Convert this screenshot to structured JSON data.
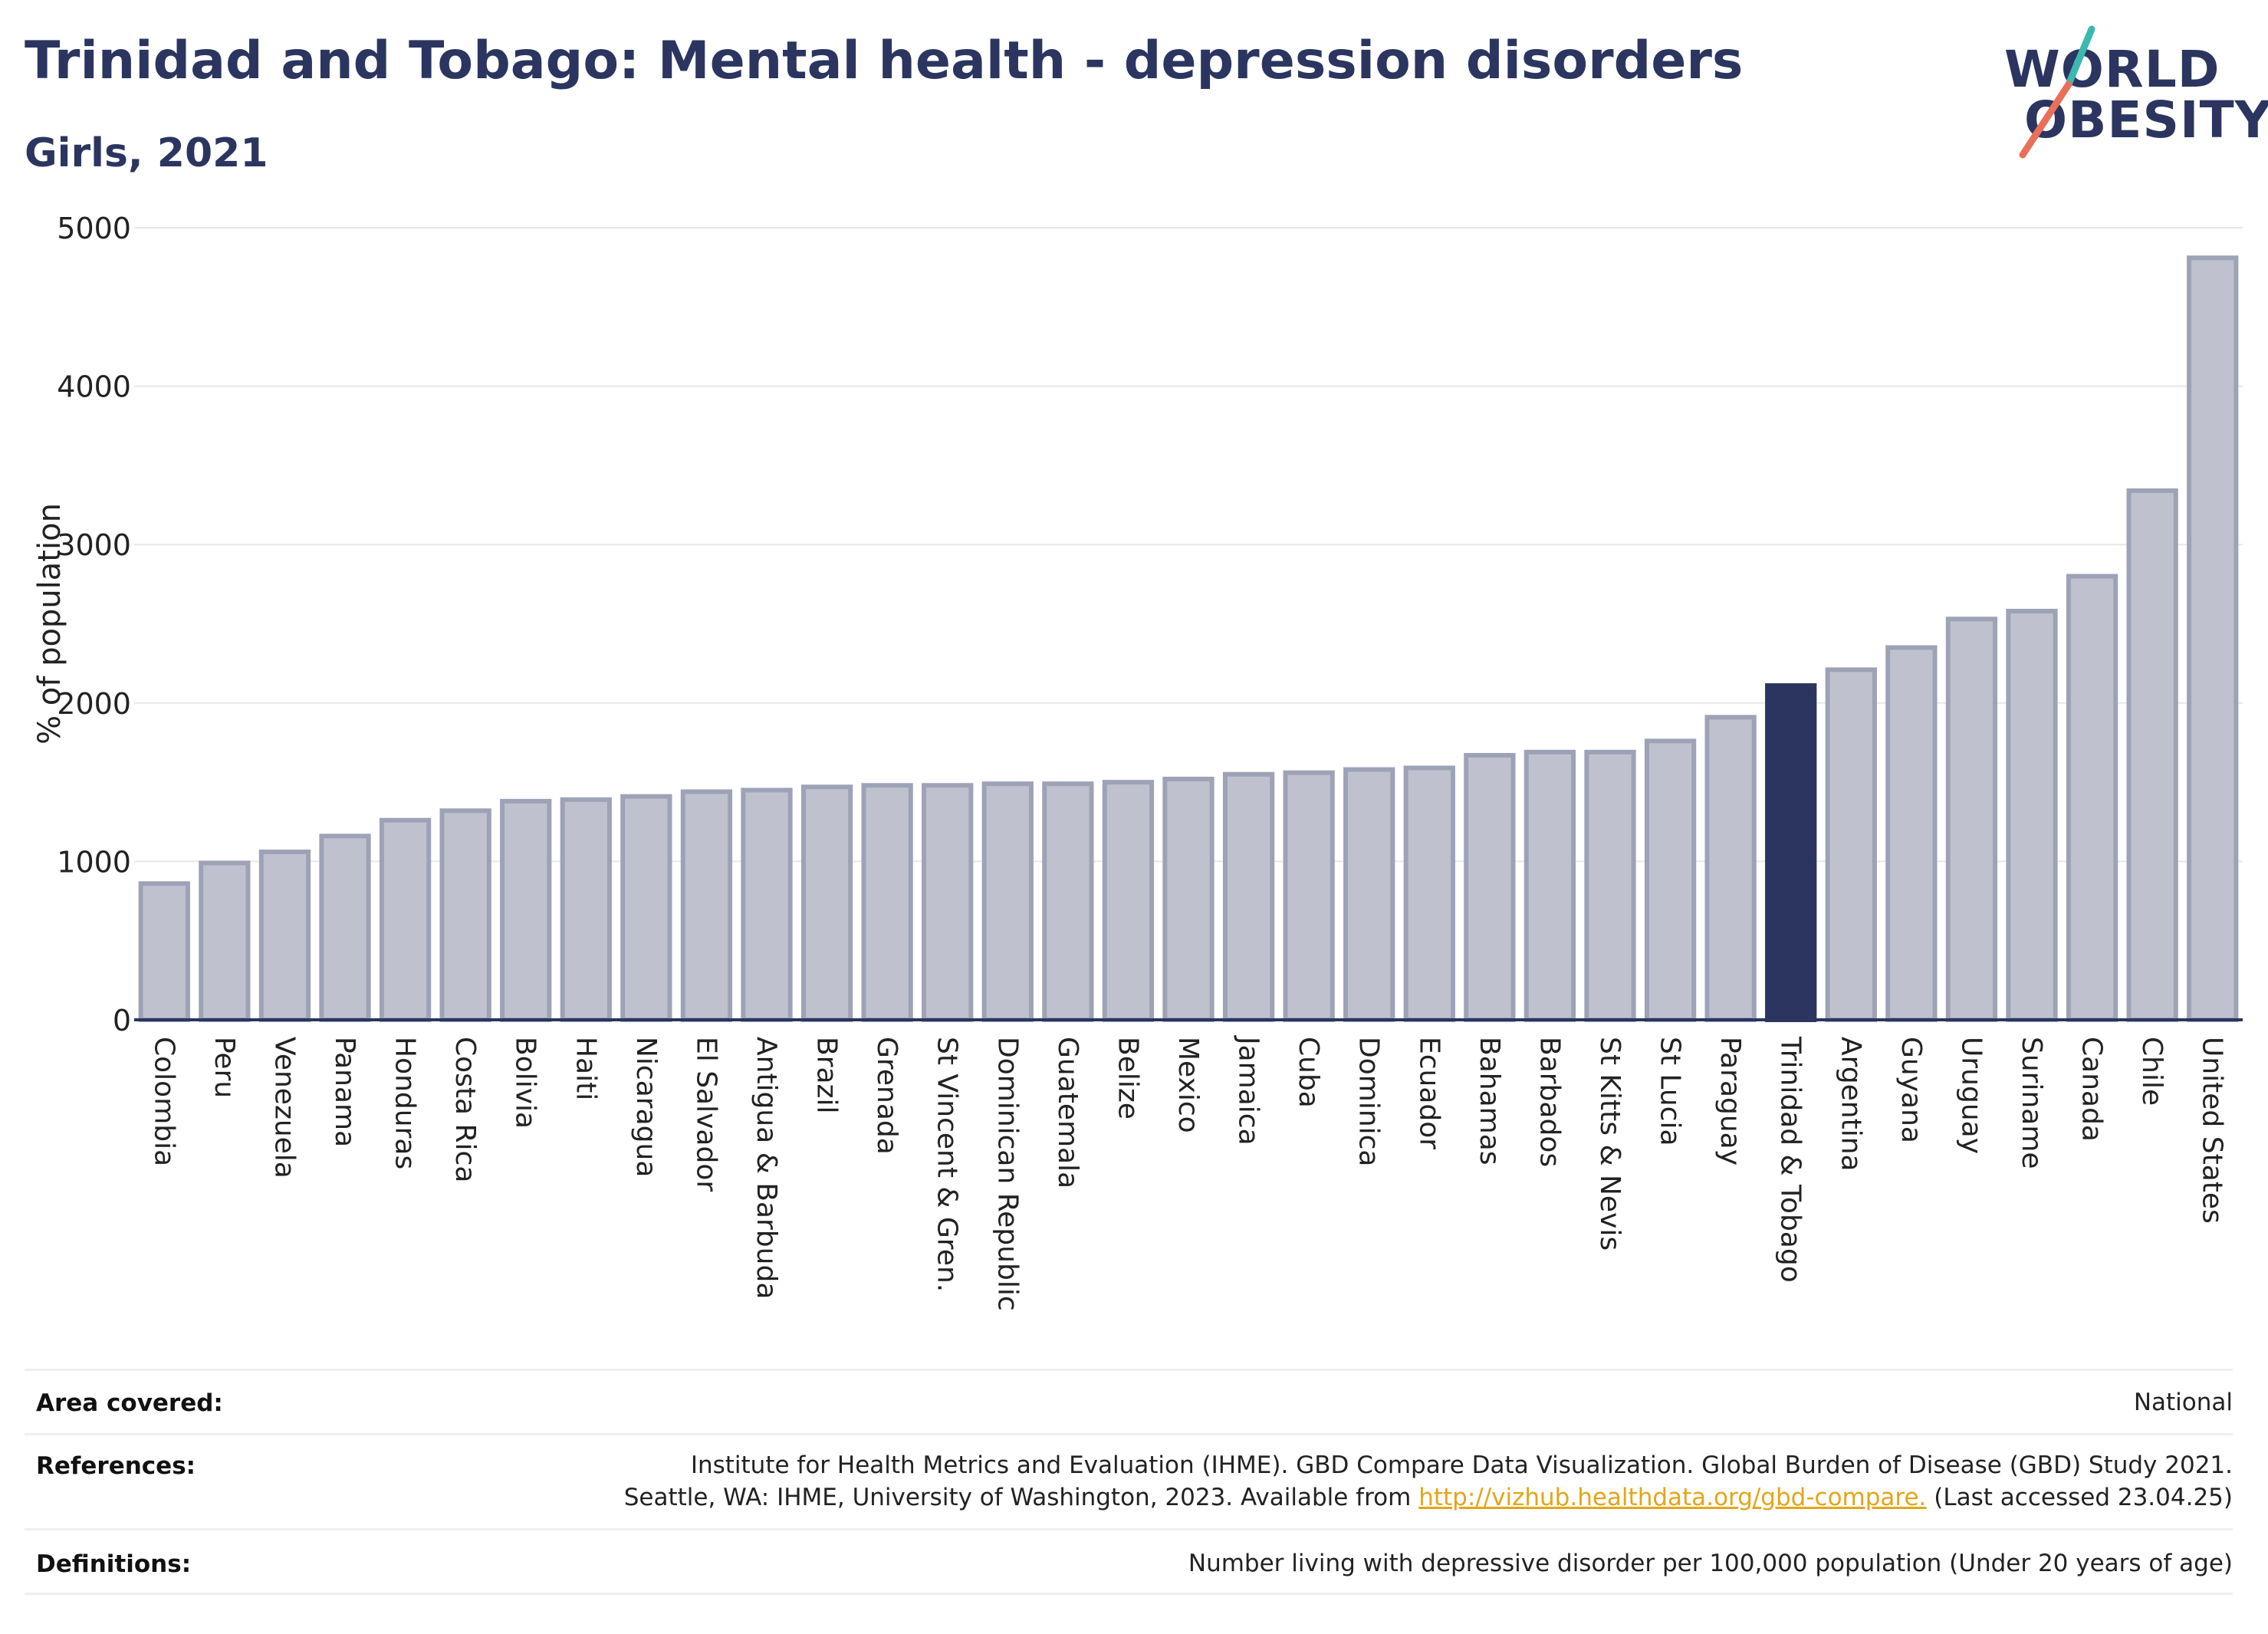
{
  "header": {
    "title": "Trinidad and Tobago: Mental health - depression disorders",
    "subtitle": "Girls, 2021"
  },
  "logo": {
    "line1": "WORLD",
    "line2": "OBESITY",
    "colors": {
      "text": "#2b3560",
      "slash_top": "#3bb8b0",
      "slash_bottom": "#e8705a"
    }
  },
  "chart_data": {
    "type": "bar",
    "title": "Trinidad and Tobago: Mental health - depression disorders",
    "subtitle": "Girls, 2021",
    "xlabel": "",
    "ylabel": "% of population",
    "ylim": [
      0,
      5000
    ],
    "yticks": [
      0,
      1000,
      2000,
      3000,
      4000,
      5000
    ],
    "grid": true,
    "categories": [
      "Colombia",
      "Peru",
      "Venezuela",
      "Panama",
      "Honduras",
      "Costa Rica",
      "Bolivia",
      "Haiti",
      "Nicaragua",
      "El Salvador",
      "Antigua & Barbuda",
      "Brazil",
      "Grenada",
      "St Vincent & Gren.",
      "Dominican Republic",
      "Guatemala",
      "Belize",
      "Mexico",
      "Jamaica",
      "Cuba",
      "Dominica",
      "Ecuador",
      "Bahamas",
      "Barbados",
      "St Kitts & Nevis",
      "St Lucia",
      "Paraguay",
      "Trinidad & Tobago",
      "Argentina",
      "Guyana",
      "Uruguay",
      "Suriname",
      "Canada",
      "Chile",
      "United States"
    ],
    "values": [
      860,
      990,
      1060,
      1160,
      1260,
      1320,
      1380,
      1390,
      1410,
      1440,
      1450,
      1470,
      1480,
      1480,
      1490,
      1490,
      1500,
      1520,
      1550,
      1560,
      1580,
      1590,
      1670,
      1690,
      1690,
      1760,
      1910,
      2110,
      2210,
      2350,
      2530,
      2580,
      2800,
      3340,
      4810
    ],
    "highlight": "Trinidad & Tobago",
    "colors": {
      "bar": "#bfc2ce",
      "bar_outline": "#9da2b6",
      "highlight": "#2b3560",
      "grid": "#e6e8ec",
      "axis": "#2b3560"
    }
  },
  "meta": {
    "area_label": "Area covered:",
    "area_value": "National",
    "references_label": "References:",
    "references_line1": "Institute for Health Metrics and Evaluation (IHME). GBD Compare Data Visualization. Global Burden of Disease (GBD) Study 2021.",
    "references_line2_pre": "Seattle, WA: IHME, University of Washington, 2023. Available from ",
    "references_link": "http://vizhub.healthdata.org/gbd-compare.",
    "references_line2_post": " (Last accessed 23.04.25)",
    "definitions_label": "Definitions:",
    "definitions_value": "Number living with depressive disorder per 100,000 population (Under 20 years of age)"
  }
}
